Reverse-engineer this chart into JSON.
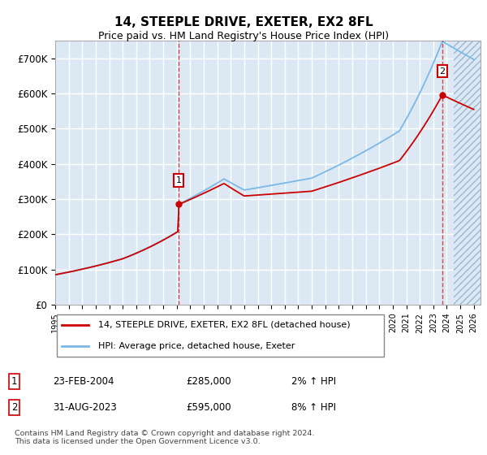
{
  "title": "14, STEEPLE DRIVE, EXETER, EX2 8FL",
  "subtitle": "Price paid vs. HM Land Registry's House Price Index (HPI)",
  "ylim": [
    0,
    750000
  ],
  "yticks": [
    0,
    100000,
    200000,
    300000,
    400000,
    500000,
    600000,
    700000
  ],
  "ytick_labels": [
    "£0",
    "£100K",
    "£200K",
    "£300K",
    "£400K",
    "£500K",
    "£600K",
    "£700K"
  ],
  "plot_bg_color": "#dce9f5",
  "grid_color": "#ffffff",
  "hpi_color": "#7ab8e8",
  "price_color": "#cc0000",
  "marker1_year": 2004.15,
  "marker1_value": 285000,
  "marker2_year": 2023.67,
  "marker2_value": 595000,
  "legend_entry1": "14, STEEPLE DRIVE, EXETER, EX2 8FL (detached house)",
  "legend_entry2": "HPI: Average price, detached house, Exeter",
  "table_row1": [
    "1",
    "23-FEB-2004",
    "£285,000",
    "2% ↑ HPI"
  ],
  "table_row2": [
    "2",
    "31-AUG-2023",
    "£595,000",
    "8% ↑ HPI"
  ],
  "footer": "Contains HM Land Registry data © Crown copyright and database right 2024.\nThis data is licensed under the Open Government Licence v3.0.",
  "future_start_year": 2024.5,
  "xlim_start": 1995.0,
  "xlim_end": 2026.5,
  "n_points": 380
}
